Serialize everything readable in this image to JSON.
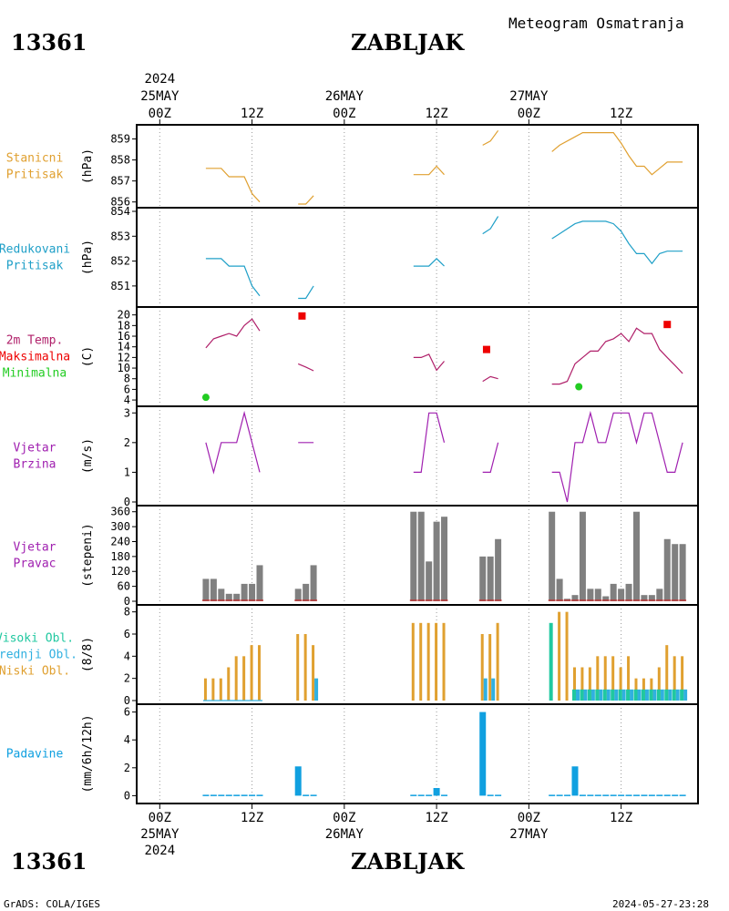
{
  "header": {
    "station_id": "13361",
    "station_name": "ZABLJAK",
    "product": "Meteogram Osmatranja"
  },
  "footer": {
    "credit": "GrADS: COLA/IGES",
    "timestamp": "2024-05-27-23:28"
  },
  "time_axis": {
    "year": "2024",
    "ticks": [
      {
        "h": 0,
        "label": "00Z",
        "date": "25MAY"
      },
      {
        "h": 12,
        "label": "12Z",
        "date": ""
      },
      {
        "h": 24,
        "label": "00Z",
        "date": "26MAY"
      },
      {
        "h": 36,
        "label": "12Z",
        "date": ""
      },
      {
        "h": 48,
        "label": "00Z",
        "date": "27MAY"
      },
      {
        "h": 60,
        "label": "12Z",
        "date": ""
      }
    ],
    "range_hours": [
      -3,
      70
    ]
  },
  "colors": {
    "pressure_station": "#e0a030",
    "pressure_reduced": "#20a0c8",
    "temperature": "#b0206a",
    "tmax": "#ee0000",
    "tmin": "#22cc22",
    "wind_speed": "#a020b0",
    "wind_dir": "#808080",
    "cloud_high": "#20c8a0",
    "cloud_mid": "#30b0e0",
    "cloud_low": "#e0a030",
    "precip": "#10a0e0"
  },
  "chart_data": [
    {
      "id": "stanicni",
      "type": "line",
      "title_lines": [
        "Stanicni",
        "Pritisak"
      ],
      "ylabel": "(hPa)",
      "ylim": [
        855.9,
        859.5
      ],
      "yticks": [
        856,
        857,
        858,
        859
      ],
      "segments": [
        [
          [
            6,
            857.6
          ],
          [
            8,
            857.6
          ],
          [
            9,
            857.2
          ],
          [
            11,
            857.2
          ],
          [
            12,
            856.4
          ],
          [
            13,
            856.0
          ]
        ],
        [
          [
            18,
            855.9
          ],
          [
            19,
            855.9
          ],
          [
            20,
            856.3
          ]
        ],
        [
          [
            33,
            857.3
          ],
          [
            35,
            857.3
          ],
          [
            36,
            857.7
          ],
          [
            37,
            857.3
          ]
        ],
        [
          [
            42,
            858.7
          ],
          [
            43,
            858.9
          ],
          [
            44,
            859.4
          ]
        ],
        [
          [
            51,
            858.4
          ],
          [
            52,
            858.7
          ],
          [
            54,
            859.1
          ],
          [
            55,
            859.3
          ],
          [
            59,
            859.3
          ],
          [
            60,
            858.8
          ],
          [
            61,
            858.2
          ],
          [
            62,
            857.7
          ],
          [
            63,
            857.7
          ],
          [
            64,
            857.3
          ],
          [
            65,
            857.6
          ],
          [
            66,
            857.9
          ],
          [
            68,
            857.9
          ]
        ]
      ]
    },
    {
      "id": "redukovani",
      "type": "line",
      "title_lines": [
        "Redukovani",
        "Pritisak"
      ],
      "ylabel": "(hPa)",
      "ylim": [
        850.3,
        854.0
      ],
      "yticks": [
        851,
        852,
        853,
        854
      ],
      "segments": [
        [
          [
            6,
            852.1
          ],
          [
            8,
            852.1
          ],
          [
            9,
            851.8
          ],
          [
            11,
            851.8
          ],
          [
            12,
            851.0
          ],
          [
            13,
            850.6
          ]
        ],
        [
          [
            18,
            850.5
          ],
          [
            19,
            850.5
          ],
          [
            20,
            851.0
          ]
        ],
        [
          [
            33,
            851.8
          ],
          [
            35,
            851.8
          ],
          [
            36,
            852.1
          ],
          [
            37,
            851.8
          ]
        ],
        [
          [
            42,
            853.1
          ],
          [
            43,
            853.3
          ],
          [
            44,
            853.8
          ]
        ],
        [
          [
            51,
            852.9
          ],
          [
            52,
            853.1
          ],
          [
            54,
            853.5
          ],
          [
            55,
            853.6
          ],
          [
            58,
            853.6
          ],
          [
            59,
            853.5
          ],
          [
            60,
            853.2
          ],
          [
            61,
            852.7
          ],
          [
            62,
            852.3
          ],
          [
            63,
            852.3
          ],
          [
            64,
            851.9
          ],
          [
            65,
            852.3
          ],
          [
            66,
            852.4
          ],
          [
            68,
            852.4
          ]
        ]
      ]
    },
    {
      "id": "temp",
      "type": "line",
      "title_lines": [
        "2m Temp.",
        "Maksimalna",
        "Minimalna"
      ],
      "ylabel": "(C)",
      "ylim": [
        3.5,
        20.8
      ],
      "yticks": [
        4,
        6,
        8,
        10,
        12,
        14,
        16,
        18,
        20
      ],
      "segments": [
        [
          [
            6,
            13.8
          ],
          [
            7,
            15.5
          ],
          [
            8,
            16
          ],
          [
            9,
            16.5
          ],
          [
            10,
            16
          ],
          [
            11,
            18
          ],
          [
            12,
            19.2
          ],
          [
            13,
            17
          ]
        ],
        [
          [
            18,
            10.8
          ],
          [
            19,
            10.2
          ],
          [
            20,
            9.5
          ]
        ],
        [
          [
            33,
            12
          ],
          [
            34,
            12
          ],
          [
            35,
            12.6
          ],
          [
            36,
            9.6
          ],
          [
            37,
            11.3
          ]
        ],
        [
          [
            42,
            7.5
          ],
          [
            43,
            8.4
          ],
          [
            44,
            8.0
          ]
        ],
        [
          [
            51,
            7.0
          ],
          [
            52,
            7.0
          ],
          [
            53,
            7.5
          ],
          [
            54,
            10.8
          ],
          [
            55,
            12
          ],
          [
            56,
            13.2
          ],
          [
            57,
            13.2
          ],
          [
            58,
            15
          ],
          [
            59,
            15.5
          ],
          [
            60,
            16.5
          ],
          [
            61,
            15
          ],
          [
            62,
            17.5
          ],
          [
            63,
            16.5
          ],
          [
            64,
            16.5
          ],
          [
            65,
            13.5
          ],
          [
            66,
            12
          ],
          [
            67,
            10.5
          ],
          [
            68,
            9
          ]
        ]
      ],
      "tmax": [
        [
          18.5,
          19.8
        ],
        [
          42.5,
          13.5
        ],
        [
          66,
          18.2
        ]
      ],
      "tmin": [
        [
          6,
          4.5
        ],
        [
          54.5,
          6.5
        ]
      ]
    },
    {
      "id": "wind_speed",
      "type": "line",
      "title_lines": [
        "Vjetar",
        "Brzina"
      ],
      "ylabel": "(m/s)",
      "ylim": [
        0,
        3.1
      ],
      "yticks": [
        0,
        1,
        2,
        3
      ],
      "segments": [
        [
          [
            6,
            2
          ],
          [
            7,
            1
          ],
          [
            8,
            2
          ],
          [
            10,
            2
          ],
          [
            11,
            3
          ],
          [
            13,
            1
          ]
        ],
        [
          [
            18,
            2
          ],
          [
            20,
            2
          ]
        ],
        [
          [
            33,
            1
          ],
          [
            34,
            1
          ],
          [
            35,
            3
          ],
          [
            36,
            3
          ],
          [
            37,
            2
          ]
        ],
        [
          [
            42,
            1
          ],
          [
            43,
            1
          ],
          [
            44,
            2
          ]
        ],
        [
          [
            51,
            1
          ],
          [
            52,
            1
          ],
          [
            53,
            0
          ],
          [
            54,
            2
          ],
          [
            55,
            2
          ],
          [
            56,
            3
          ],
          [
            57,
            2
          ],
          [
            58,
            2
          ],
          [
            59,
            3
          ],
          [
            61,
            3
          ],
          [
            62,
            2
          ],
          [
            63,
            3
          ],
          [
            64,
            3
          ],
          [
            66,
            1
          ],
          [
            67,
            1
          ],
          [
            68,
            2
          ]
        ]
      ]
    },
    {
      "id": "wind_dir",
      "type": "bar",
      "title_lines": [
        "Vjetar",
        "Pravac"
      ],
      "ylabel": "(stepeni)",
      "ylim": [
        0,
        370
      ],
      "yticks": [
        0,
        60,
        120,
        180,
        240,
        300,
        360
      ],
      "x": [
        6,
        7,
        8,
        9,
        10,
        11,
        12,
        13,
        18,
        19,
        20,
        33,
        34,
        35,
        36,
        37,
        42,
        43,
        44,
        51,
        52,
        53,
        54,
        55,
        56,
        57,
        58,
        59,
        60,
        61,
        62,
        63,
        64,
        65,
        66,
        67,
        68
      ],
      "values": [
        90,
        90,
        50,
        30,
        30,
        70,
        70,
        145,
        50,
        70,
        145,
        360,
        360,
        160,
        320,
        340,
        180,
        180,
        250,
        360,
        90,
        10,
        25,
        360,
        50,
        50,
        20,
        70,
        50,
        70,
        360,
        25,
        25,
        50,
        250,
        230,
        230
      ]
    },
    {
      "id": "clouds",
      "type": "bar",
      "title_lines": [
        "Visoki Obl.",
        "Srednji Obl.",
        "Niski Obl."
      ],
      "ylabel": "(8/8)",
      "ylim": [
        0,
        8.3
      ],
      "yticks": [
        0,
        2,
        4,
        6,
        8
      ],
      "series": [
        {
          "name": "Visoki Obl.",
          "x": [
            51,
            54,
            55,
            56,
            57,
            58,
            59,
            60,
            61,
            62,
            63,
            64,
            65,
            66,
            67,
            68
          ],
          "values": [
            7,
            1,
            1,
            1,
            1,
            1,
            1,
            1,
            1,
            1,
            1,
            1,
            1,
            1,
            1,
            1
          ]
        },
        {
          "name": "Srednji Obl.",
          "x": [
            20,
            42,
            43,
            54,
            55,
            56,
            57,
            58,
            59,
            60,
            61,
            62,
            63,
            64,
            65,
            66,
            67,
            68
          ],
          "values": [
            2,
            2,
            2,
            1,
            1,
            1,
            1,
            1,
            1,
            1,
            1,
            1,
            1,
            1,
            1,
            1,
            1,
            1
          ]
        },
        {
          "name": "Niski Obl.",
          "x": [
            6,
            7,
            8,
            9,
            10,
            11,
            12,
            13,
            18,
            19,
            20,
            33,
            34,
            35,
            36,
            37,
            42,
            43,
            44,
            52,
            53,
            54,
            55,
            56,
            57,
            58,
            59,
            60,
            61,
            62,
            63,
            64,
            65,
            66,
            67,
            68
          ],
          "values": [
            2,
            2,
            2,
            3,
            4,
            4,
            5,
            5,
            6,
            6,
            5,
            7,
            7,
            7,
            7,
            7,
            6,
            6,
            7,
            8,
            8,
            3,
            3,
            3,
            4,
            4,
            4,
            3,
            4,
            2,
            2,
            2,
            3,
            5,
            4,
            4
          ]
        }
      ]
    },
    {
      "id": "precip",
      "type": "bar",
      "title_lines": [
        "Padavine"
      ],
      "ylabel": "(mm/6h/12h)",
      "ylim": [
        -0.3,
        6.3
      ],
      "yticks": [
        0,
        2,
        4,
        6
      ],
      "x": [
        6,
        7,
        8,
        9,
        10,
        11,
        12,
        13,
        18,
        19,
        20,
        33,
        34,
        35,
        36,
        37,
        42,
        43,
        44,
        51,
        52,
        53,
        54,
        55,
        56,
        57,
        58,
        59,
        60,
        61,
        62,
        63,
        64,
        65,
        66,
        67,
        68
      ],
      "values": [
        0.05,
        0.05,
        0.05,
        0.05,
        0.05,
        0.05,
        0.05,
        0.05,
        2.1,
        0.05,
        0.05,
        0.05,
        0.05,
        0.05,
        0.55,
        0.05,
        6.0,
        0.05,
        0.05,
        0.05,
        0.05,
        0.05,
        2.1,
        0.05,
        0.05,
        0.05,
        0.05,
        0.05,
        0.05,
        0.05,
        0.05,
        0.05,
        0.05,
        0.05,
        0.05,
        0.05,
        0.05
      ]
    }
  ]
}
